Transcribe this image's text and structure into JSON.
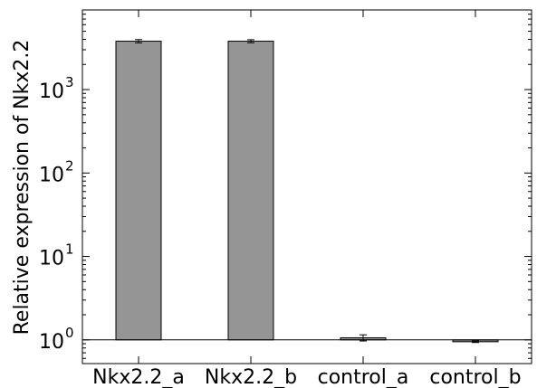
{
  "chart_data": {
    "type": "bar",
    "categories": [
      "Nkx2.2_a",
      "Nkx2.2_b",
      "control_a",
      "control_b"
    ],
    "values": [
      3800,
      3800,
      1.06,
      0.95
    ],
    "errors": [
      170,
      160,
      0.09,
      0.02
    ],
    "ylabel": "Relative expression of Nkx2.2",
    "xlabel": "",
    "title": "",
    "yscale": "log",
    "ylim": [
      0.52,
      9000
    ],
    "y_ticks": [
      {
        "value": 1,
        "base": "10",
        "exp": "0"
      },
      {
        "value": 10,
        "base": "10",
        "exp": "1"
      },
      {
        "value": 100,
        "base": "10",
        "exp": "2"
      },
      {
        "value": 1000,
        "base": "10",
        "exp": "3"
      }
    ],
    "bar_color": "#959595",
    "edge_color": "#000000",
    "baseline": 1,
    "grid": false,
    "legend": "none"
  }
}
